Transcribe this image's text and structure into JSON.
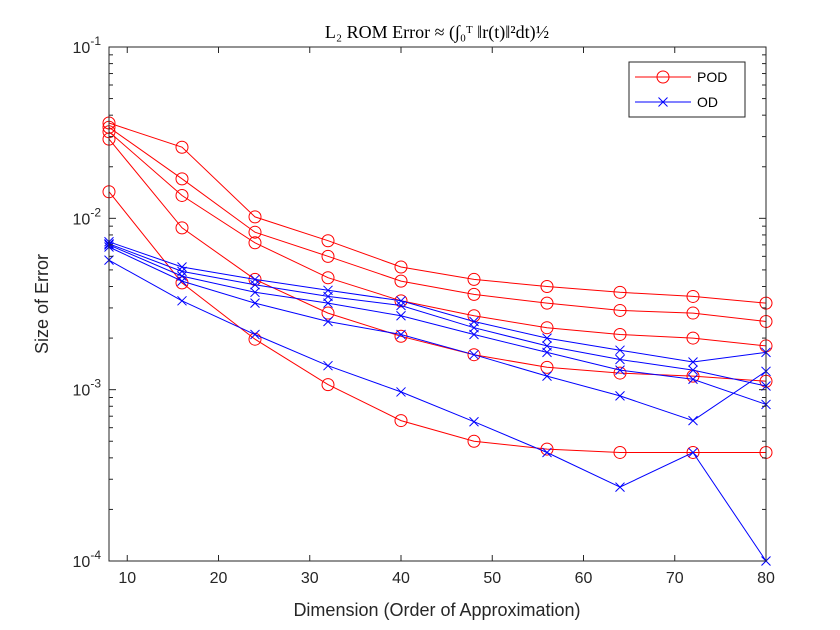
{
  "chart_data": {
    "type": "line",
    "title": "L₂ ROM Error ≈ (∫₀ᵀ ‖r(t)‖²dt)½",
    "xlabel": "Dimension (Order of Approximation)",
    "ylabel": "Size of Error",
    "xlim": [
      8,
      80
    ],
    "ylim": [
      0.0001,
      0.1
    ],
    "yscale": "log",
    "grid": false,
    "legend_position": "top-right",
    "x_ticks": [
      10,
      20,
      30,
      40,
      50,
      60,
      70,
      80
    ],
    "x_tick_labels": [
      "10",
      "20",
      "30",
      "40",
      "50",
      "60",
      "70",
      "80"
    ],
    "y_ticks": [
      0.0001,
      0.001,
      0.01,
      0.1
    ],
    "y_tick_labels": [
      {
        "base": "10",
        "exp": "-4"
      },
      {
        "base": "10",
        "exp": "-3"
      },
      {
        "base": "10",
        "exp": "-2"
      },
      {
        "base": "10",
        "exp": "-1"
      }
    ],
    "x": [
      8,
      16,
      24,
      32,
      40,
      48,
      56,
      64,
      72,
      80
    ],
    "groups": [
      {
        "name": "POD",
        "color": "#ff0000",
        "marker": "circle",
        "curves": [
          [
            0.036,
            0.026,
            0.0102,
            0.0074,
            0.0052,
            0.0044,
            0.004,
            0.0037,
            0.0035,
            0.0032
          ],
          [
            0.034,
            0.017,
            0.0083,
            0.006,
            0.0043,
            0.0036,
            0.0032,
            0.0029,
            0.0028,
            0.0025
          ],
          [
            0.032,
            0.0136,
            0.0072,
            0.0045,
            0.0033,
            0.0027,
            0.0023,
            0.0021,
            0.002,
            0.0018
          ],
          [
            0.029,
            0.0088,
            0.0044,
            0.0028,
            0.00205,
            0.0016,
            0.00135,
            0.00125,
            0.0012,
            0.00112
          ],
          [
            0.0143,
            0.0042,
            0.00197,
            0.00107,
            0.00066,
            0.0005,
            0.00045,
            0.00043,
            0.00043,
            0.00043
          ]
        ]
      },
      {
        "name": "OD",
        "color": "#0000ff",
        "marker": "x",
        "curves": [
          [
            0.0073,
            0.0052,
            0.0044,
            0.0038,
            0.0033,
            0.0025,
            0.002,
            0.0017,
            0.00145,
            0.00165
          ],
          [
            0.0071,
            0.0049,
            0.0041,
            0.0035,
            0.0031,
            0.0023,
            0.0018,
            0.0015,
            0.0013,
            0.00105
          ],
          [
            0.007,
            0.0046,
            0.0037,
            0.0032,
            0.0027,
            0.0021,
            0.00165,
            0.0013,
            0.00115,
            0.00082
          ],
          [
            0.0068,
            0.0043,
            0.0032,
            0.0025,
            0.0021,
            0.0016,
            0.0012,
            0.00092,
            0.00066,
            0.00128
          ],
          [
            0.0057,
            0.0033,
            0.0021,
            0.00138,
            0.00097,
            0.00065,
            0.00043,
            0.00027,
            0.00043,
            0.0001
          ]
        ]
      }
    ]
  }
}
